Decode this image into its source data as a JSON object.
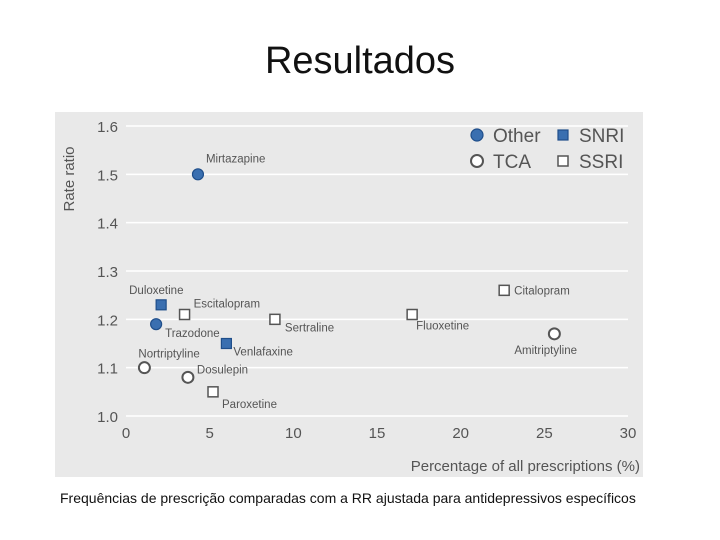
{
  "slide": {
    "title": "Resultados",
    "caption": "Frequências de prescrição comparadas com a RR ajustada para antidepressivos específicos"
  },
  "chart_data": {
    "type": "scatter",
    "xlabel": "Percentage of all prescriptions (%)",
    "ylabel": "Rate ratio",
    "xlim": [
      0,
      30
    ],
    "ylim": [
      1.0,
      1.6
    ],
    "xticks": [
      "0",
      "5",
      "10",
      "15",
      "20",
      "25",
      "30"
    ],
    "yticks": [
      "1.0",
      "1.1",
      "1.2",
      "1.3",
      "1.4",
      "1.5",
      "1.6"
    ],
    "grid": true,
    "legend_position": "top-right",
    "series": [
      {
        "name": "Other",
        "marker": "filled-circle",
        "color": "#3a6fb0",
        "points": [
          {
            "label": "Mirtazapine",
            "x": 4.3,
            "y": 1.5
          },
          {
            "label": "Trazodone",
            "x": 1.8,
            "y": 1.19
          }
        ]
      },
      {
        "name": "SNRI",
        "marker": "filled-square",
        "color": "#3a6fb0",
        "points": [
          {
            "label": "Duloxetine",
            "x": 2.1,
            "y": 1.23
          },
          {
            "label": "Venlafaxine",
            "x": 6.0,
            "y": 1.15
          }
        ]
      },
      {
        "name": "TCA",
        "marker": "open-circle",
        "color": "#555555",
        "points": [
          {
            "label": "Nortriptyline",
            "x": 1.1,
            "y": 1.1
          },
          {
            "label": "Dosulepin",
            "x": 3.7,
            "y": 1.08
          },
          {
            "label": "Amitriptyline",
            "x": 25.6,
            "y": 1.17
          }
        ]
      },
      {
        "name": "SSRI",
        "marker": "open-square",
        "color": "#555555",
        "points": [
          {
            "label": "Escitalopram",
            "x": 3.5,
            "y": 1.21
          },
          {
            "label": "Sertraline",
            "x": 8.9,
            "y": 1.2
          },
          {
            "label": "Paroxetine",
            "x": 5.2,
            "y": 1.05
          },
          {
            "label": "Fluoxetine",
            "x": 17.1,
            "y": 1.21
          },
          {
            "label": "Citalopram",
            "x": 22.6,
            "y": 1.26
          }
        ]
      }
    ]
  }
}
